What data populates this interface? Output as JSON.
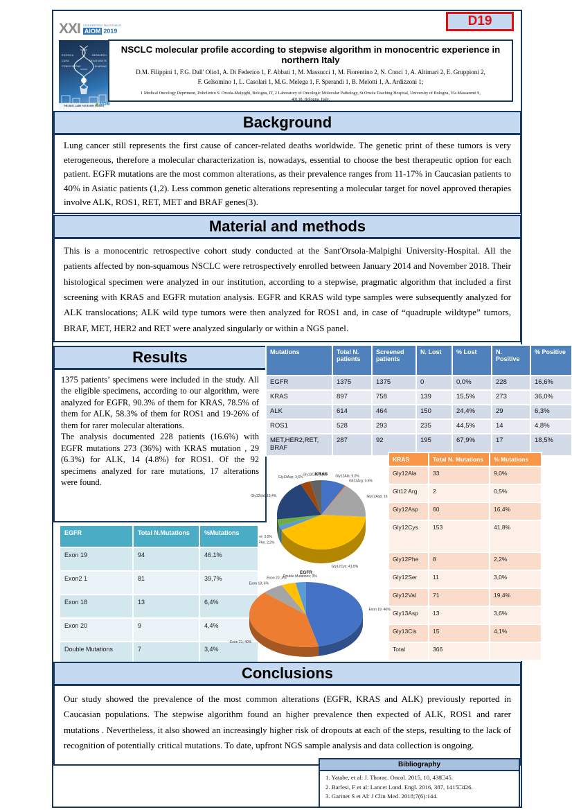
{
  "badge": {
    "label": "D19"
  },
  "logo": {
    "xxi": "XXI",
    "congresso": "CONGRESSO NAZIONALE",
    "aiom": "AIOM",
    "year": "2019",
    "thumb_words_left": [
      "RICERCA",
      "CURA",
      "CONDIVISIONE"
    ],
    "thumb_words_right": [
      "RESEARCH",
      "TREATMENTS",
      "SHARING"
    ],
    "thumb_caption": "THE BEST CARE FOR EVERY PATIENT",
    "mini_logo": "AIOM"
  },
  "header": {
    "title": "NSCLC molecular profile according to stepwise algorithm in monocentric experience in northern Italy",
    "authors_line1": "D.M. Filippini 1, F.G. Dall' Olio1, A. Di Federico 1, F. Abbati 1, M. Massucci 1, M. Fiorentino 2, N. Conci 1, A. Altimari 2, E. Gruppioni 2,",
    "authors_line2": "F. Gelsomino 1, L. Casolari 1, M.G. Melega 1, F. Sperandi 1, B. Melotti 1, A. Ardizzoni 1;",
    "affiliations_line1": "1 Medical Oncology Deprtment, Policlinico S. Orsola-Malpighi, Bologna, IT,  2 Laboratory of Oncologic Molecular Pathology, St.Orsola Teaching Hospital, University of Bologna, Via Massarenti 9,",
    "affiliations_line2": "40138, Bologna, Italy."
  },
  "sections": {
    "background": {
      "title": "Background",
      "text": "Lung cancer still represents the first cause of cancer-related deaths worldwide. The genetic print of these tumors is very eterogeneous, therefore a molecular characterization is, nowadays, essential to choose the best therapeutic option for each patient.  EGFR mutations are the most common alterations, as their prevalence ranges from 11-17% in Caucasian patients to 40% in Asiatic patients (1,2). Less common genetic alterations representing a molecular target for novel approved therapies involve ALK, ROS1, RET, MET and BRAF genes(3)."
    },
    "methods": {
      "title": "Material and methods",
      "text": "This is a monocentric retrospective cohort study conducted at the Sant'Orsola-Malpighi University-Hospital. All the patients affected by non-squamous NSCLC were retrospectively enrolled between January 2014 and November 2018. Their histological specimen were analyzed in our institution, according to a stepwise, pragmatic algorithm that included a first screening with KRAS and EGFR mutation analysis. EGFR and KRAS wild type samples were subsequently analyzed for ALK translocations; ALK wild type tumors were then analyzed for ROS1 and, in case of “quadruple wildtype” tumors, BRAF, MET, HER2 and RET were analyzed singularly or within a NGS panel."
    },
    "results": {
      "title": "Results",
      "para1": "1375 patients’ specimens were included in the study. All the eligible specimens, according to our algorithm, were analyzed for EGFR, 90.3% of them for KRAS, 78.5% of them for ALK, 58.3% of them for ROS1 and 19-26%  of them for rarer molecular alterations.",
      "para2": "The analysis documented 228 patients (16.6%) with EGFR mutations 273 (36%) with KRAS mutation , 29 (6.3%) for ALK, 14 (4.8%) for ROS1.  Of the 92 specimens analyzed for rare mutations, 17 alterations were found."
    },
    "conclusions": {
      "title": "Conclusions",
      "text": "Our study showed the prevalence of the most common alterations (EGFR, KRAS and ALK) previously reported in Caucasian populations. The stepwise algorithm found an higher prevalence then expected of ALK, ROS1 and rarer mutations . Nevertheless, it also showed an increasingly higher risk of dropouts at each of the steps, resulting to the lack of recognition of potentially critical mutations. To date, upfront NGS sample analysis and data collection is ongoing."
    }
  },
  "mutations_table": {
    "headers": [
      "Mutations",
      "Total N. patients",
      "Screened patients",
      "N. Lost",
      "% Lost",
      "N. Positive",
      "% Positive"
    ],
    "rows": [
      [
        "EGFR",
        "1375",
        "1375",
        "0",
        "0,0%",
        "228",
        "16,6%"
      ],
      [
        "KRAS",
        "897",
        "758",
        "139",
        "15,5%",
        "273",
        "36,0%"
      ],
      [
        "ALK",
        "614",
        "464",
        "150",
        "24,4%",
        "29",
        "6,3%"
      ],
      [
        "ROS1",
        "528",
        "293",
        "235",
        "44,5%",
        "14",
        "4,8%"
      ],
      [
        "MET,HER2,RET, BRAF",
        "287",
        "92",
        "195",
        "67,9%",
        "17",
        "18,5%"
      ]
    ]
  },
  "egfr_table": {
    "headers": [
      "EGFR",
      "Total N.Mutations",
      "%Mutations"
    ],
    "rows": [
      [
        "Exon 19",
        "94",
        "46.1%"
      ],
      [
        "Exon2 1",
        "81",
        "39,7%"
      ],
      [
        "Exon 18",
        "13",
        "6,4%"
      ],
      [
        "Exon 20",
        "9",
        "4,4%"
      ],
      [
        "Double Mutations",
        "7",
        "3,4%"
      ]
    ]
  },
  "kras_table": {
    "headers": [
      "KRAS",
      "Total N. Mutations",
      "% Mutations"
    ],
    "rows": [
      [
        "Gly12Ala",
        "33",
        "9,0%"
      ],
      [
        "Glt12 Arg",
        "2",
        "0,5%"
      ],
      [
        "Gly12Asp",
        "60",
        "16,4%"
      ],
      [
        "Gly12Cys",
        "153",
        "41,8%"
      ],
      [
        "Gly12Phe",
        "8",
        "2,2%"
      ],
      [
        "Gly12Ser",
        "11",
        "3,0%"
      ],
      [
        "Gly12Val",
        "71",
        "19,4%"
      ],
      [
        "Gly13Asp",
        "13",
        "3,6%"
      ],
      [
        "Gly13Cis",
        "15",
        "4,1%"
      ],
      [
        "Total",
        "366",
        ""
      ]
    ]
  },
  "bibliography": {
    "title": "Bibliography",
    "items": [
      "1. Yatabe, et al: J. Thorac. Oncol. 2015, 10, 438□45.",
      "2. Barlesi, F et al: Lancet Lond. Engl. 2016, 387, 1415□426.",
      "3. Garinet S et Al: J Clin Med. 2018;7(6):144."
    ]
  },
  "chart_data": [
    {
      "type": "pie",
      "style": "3d",
      "title": "KRAS",
      "labels": [
        "Gly12Ala",
        "Glt12Arg",
        "Gly12Asp",
        "Gly12Cys",
        "Gly12Phe",
        "Gly12Ser",
        "Gly12Val",
        "Gly13Asp",
        "Gly13Cis"
      ],
      "values": [
        9.0,
        0.5,
        16.4,
        41.8,
        2.2,
        3.0,
        19.4,
        3.6,
        4.1
      ],
      "pct_labels": [
        "9,0%",
        "0,5%",
        "16,4%",
        "41,8%",
        "2,2%",
        "3,0%",
        "19,4%",
        "3,6%",
        "4,1%"
      ],
      "colors": [
        "#4472C4",
        "#ED7D31",
        "#A5A5A5",
        "#FFC000",
        "#5B9BD5",
        "#70AD47",
        "#264478",
        "#9E480E",
        "#636363"
      ],
      "legend_position": "none"
    },
    {
      "type": "pie",
      "style": "3d",
      "title": "EGFR",
      "labels": [
        "Exon 19",
        "Exon 21",
        "Exon 18",
        "Exon 20",
        "Double Mutations"
      ],
      "values": [
        46,
        40,
        6,
        4,
        3
      ],
      "pct_labels": [
        "46%",
        "40%",
        "6%",
        "4%",
        "3%"
      ],
      "colors": [
        "#4472C4",
        "#ED7D31",
        "#A5A5A5",
        "#FFC000",
        "#5B9BD5"
      ],
      "legend_position": "none"
    }
  ],
  "colors": {
    "frame_navy": "#17375E",
    "section_bar_blue": "#C5D9F1",
    "mutations_header_blue": "#4F81BD",
    "kras_header_orange": "#F79646",
    "egfr_header_teal": "#4BACC6",
    "badge_red": "#E01010"
  }
}
